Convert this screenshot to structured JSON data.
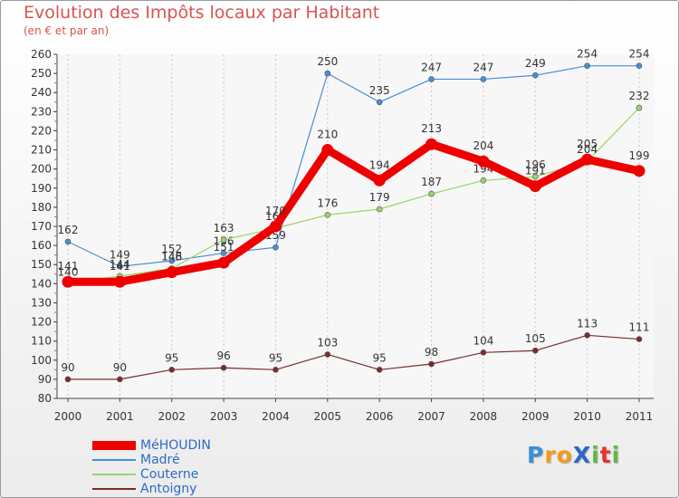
{
  "title": "Evolution des Impôts locaux par Habitant",
  "subtitle": "(en € et par an)",
  "logo": {
    "text": "ProXiti",
    "letters": [
      {
        "ch": "P",
        "color": "#3b8fd6"
      },
      {
        "ch": "r",
        "color": "#f39a1c"
      },
      {
        "ch": "o",
        "color": "#f39a1c"
      },
      {
        "ch": "X",
        "color": "#2f66c4"
      },
      {
        "ch": "i",
        "color": "#62b848"
      },
      {
        "ch": "t",
        "color": "#e4332c"
      },
      {
        "ch": "i",
        "color": "#62b848"
      }
    ]
  },
  "chart_data": {
    "type": "line",
    "title": "Evolution des Impôts locaux par Habitant",
    "subtitle": "(en € et par an)",
    "xlabel": "",
    "ylabel": "",
    "categories": [
      "2000",
      "2001",
      "2002",
      "2003",
      "2004",
      "2005",
      "2006",
      "2007",
      "2008",
      "2009",
      "2010",
      "2011"
    ],
    "ylim": [
      80,
      260
    ],
    "yticks": [
      80,
      90,
      100,
      110,
      120,
      130,
      140,
      150,
      160,
      170,
      180,
      190,
      200,
      210,
      220,
      230,
      240,
      250,
      260
    ],
    "grid": "vertical dashed",
    "legend_position": "bottom-left",
    "series": [
      {
        "name": "Antoigny",
        "color": "#7b2b2b",
        "emphasis": false,
        "values": [
          90,
          90,
          95,
          96,
          95,
          103,
          95,
          98,
          104,
          105,
          113,
          111
        ]
      },
      {
        "name": "Madré",
        "color": "#4a8ed4",
        "emphasis": false,
        "values": [
          162,
          149,
          152,
          156,
          159,
          250,
          235,
          247,
          247,
          249,
          254,
          254
        ]
      },
      {
        "name": "Couterne",
        "color": "#9ad46a",
        "emphasis": false,
        "values": [
          140,
          144,
          148,
          163,
          169,
          176,
          179,
          187,
          194,
          196,
          204,
          232
        ]
      },
      {
        "name": "MéHOUDIN",
        "color": "#ee0000",
        "emphasis": true,
        "values": [
          141,
          141,
          146,
          151,
          170,
          210,
          194,
          213,
          204,
          191,
          205,
          199
        ]
      }
    ],
    "legend_order": [
      "MéHOUDIN",
      "Madré",
      "Couterne",
      "Antoigny"
    ]
  }
}
